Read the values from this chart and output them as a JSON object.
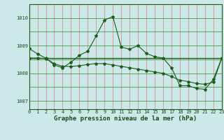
{
  "title": "Graphe pression niveau de la mer (hPa)",
  "bg_color": "#cde8e8",
  "line_color": "#1a5c1a",
  "ylim": [
    1006.7,
    1010.5
  ],
  "xlim": [
    0,
    23
  ],
  "yticks": [
    1007,
    1008,
    1009,
    1010
  ],
  "ytick_labels": [
    "1007",
    "1008",
    "1009",
    "1010"
  ],
  "xtick_labels": [
    "0",
    "1",
    "2",
    "3",
    "4",
    "5",
    "6",
    "7",
    "8",
    "9",
    "10",
    "11",
    "12",
    "13",
    "14",
    "15",
    "16",
    "17",
    "18",
    "19",
    "20",
    "21",
    "22",
    "23"
  ],
  "series1_x": [
    0,
    1,
    2,
    3,
    4,
    5,
    6,
    7,
    8,
    9,
    10,
    11,
    12,
    13,
    14,
    15,
    16,
    17,
    18,
    19,
    20,
    21,
    22,
    23
  ],
  "series1_y": [
    1008.9,
    1008.7,
    1008.55,
    1008.3,
    1008.2,
    1008.4,
    1008.65,
    1008.8,
    1009.35,
    1009.93,
    1010.05,
    1008.95,
    1008.87,
    1009.0,
    1008.72,
    1008.6,
    1008.55,
    1008.2,
    1007.55,
    1007.55,
    1007.45,
    1007.42,
    1007.78,
    1008.55
  ],
  "series2_x": [
    0,
    1,
    2,
    3,
    4,
    5,
    6,
    7,
    8,
    9,
    10,
    11,
    12,
    13,
    14,
    15,
    16,
    17,
    18,
    19,
    20,
    21,
    22,
    23
  ],
  "series2_y": [
    1008.55,
    1008.55,
    1008.53,
    1008.35,
    1008.25,
    1008.25,
    1008.27,
    1008.32,
    1008.35,
    1008.35,
    1008.3,
    1008.25,
    1008.2,
    1008.15,
    1008.1,
    1008.05,
    1008.0,
    1007.88,
    1007.75,
    1007.7,
    1007.63,
    1007.6,
    1007.68,
    1008.55
  ],
  "hline_y": 1008.55,
  "grid_color_h": "#2a8a2a",
  "grid_color_v": "#d88080",
  "font_color": "#1a4a1a",
  "marker": "*",
  "markersize": 3.0,
  "linewidth": 0.8,
  "title_fontsize": 6.5,
  "tick_fontsize": 5.0,
  "ylabel_fontsize": 5.5
}
